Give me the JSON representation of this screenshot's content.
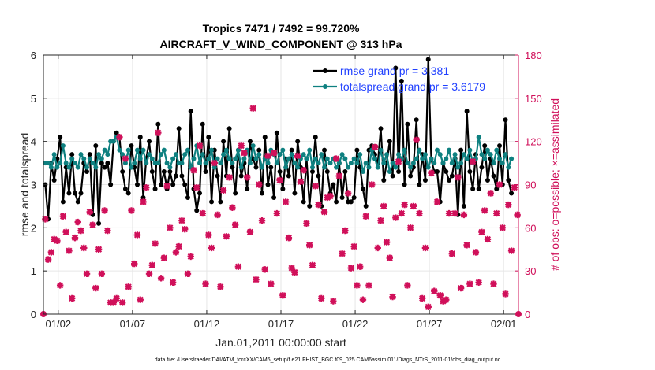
{
  "chart_data": {
    "type": "line",
    "title": "Tropics 7471 / 7492 = 99.720%",
    "subtitle": "AIRCRAFT_V_WIND_COMPONENT @ 313 hPa",
    "xlabel": "Jan.01,2011 00:00:00 start",
    "ylabel": "rmse and totalspread",
    "ylabel_right": "# of obs: o=possible; ×=assimilated",
    "footer": "data file: /Users/raeder/DAI/ATM_forcXX/CAM6_setup/f.e21.FHIST_BGC.f09_025.CAM6assim.011/Diags_NTrS_2011-01/obs_diag_output.nc",
    "xlim": [
      0.5,
      32.5
    ],
    "ylim": [
      0,
      6
    ],
    "ylim_right": [
      0,
      180
    ],
    "x_ticks": [
      1.5,
      6.5,
      11.5,
      16.5,
      21.5,
      26.5,
      31.5
    ],
    "x_tick_labels": [
      "01/02",
      "01/07",
      "01/12",
      "01/17",
      "01/22",
      "01/27",
      "02/01"
    ],
    "y_ticks": [
      0,
      1,
      2,
      3,
      4,
      5,
      6
    ],
    "y_ticks_right": [
      0,
      30,
      60,
      90,
      120,
      150,
      180
    ],
    "grid": true,
    "legend_location": "top-right",
    "colors": {
      "rmse": "#000000",
      "spread": "#0e8080",
      "obs": "#d0105a",
      "right_axis": "#d0105a"
    },
    "series": [
      {
        "name": "rmse grand pr = 3.381",
        "axis": "left",
        "color": "#000000",
        "marker": "dot",
        "values": [
          3.0,
          2.2,
          3.5,
          3.1,
          3.6,
          4.1,
          2.6,
          3.4,
          2.8,
          3.7,
          2.8,
          2.6,
          2.8,
          3.5,
          3.3,
          3.7,
          2.3,
          3.9,
          2.1,
          3.5,
          3.4,
          3.5,
          3.0,
          4.0,
          4.2,
          4.1,
          3.3,
          2.9,
          2.8,
          3.9,
          3.4,
          3.0,
          4.1,
          2.7,
          3.6,
          4.0,
          3.3,
          2.9,
          4.4,
          3.0,
          3.3,
          2.9,
          3.3,
          3.0,
          3.2,
          4.3,
          3.2,
          3.0,
          2.7,
          4.7,
          2.9,
          2.4,
          2.8,
          4.4,
          3.3,
          4.1,
          2.6,
          3.8,
          3.2,
          2.6,
          4.0,
          3.2,
          4.3,
          3.4,
          2.8,
          3.8,
          3.2,
          3.5,
          2.9,
          4.0,
          3.6,
          3.4,
          3.8,
          2.8,
          4.1,
          3.0,
          3.4,
          2.7,
          4.2,
          3.3,
          2.9,
          3.6,
          3.2,
          3.8,
          2.8,
          4.0,
          3.4,
          2.6,
          3.6,
          2.5,
          3.3,
          4.1,
          3.2,
          2.5,
          3.8,
          3.3,
          2.8,
          3.0,
          2.6,
          3.5,
          2.7,
          3.3,
          2.6,
          2.6,
          2.7,
          3.8,
          3.4,
          2.9,
          2.5,
          3.8,
          3.9,
          3.7,
          3.5,
          4.3,
          3.1,
          3.5,
          4.0,
          3.2,
          5.7,
          3.3,
          5.4,
          3.0,
          4.4,
          3.2,
          3.4,
          4.5,
          3.0,
          3.7,
          3.1,
          5.9,
          3.6,
          3.3,
          3.3,
          2.6,
          3.5,
          3.3,
          3.1,
          3.2,
          3.6,
          2.3,
          3.8,
          2.5,
          4.7,
          3.3,
          2.9,
          3.7,
          2.9,
          3.4,
          3.9,
          3.1,
          3.6,
          3.2,
          2.9,
          3.9,
          3.0,
          4.5,
          3.1,
          2.8
        ]
      },
      {
        "name": "totalspread grand pr = 3.6179",
        "axis": "left",
        "color": "#0e8080",
        "marker": "dot",
        "values": [
          3.5,
          3.5,
          3.4,
          3.7,
          3.4,
          3.5,
          3.9,
          3.5,
          3.4,
          3.6,
          3.5,
          3.4,
          3.7,
          3.6,
          3.4,
          3.6,
          3.5,
          3.4,
          3.7,
          3.6,
          3.8,
          3.7,
          4.0,
          4.0,
          4.1,
          3.8,
          3.7,
          3.5,
          3.8,
          3.4,
          3.5,
          3.8,
          3.6,
          3.8,
          3.5,
          3.7,
          3.6,
          3.5,
          3.5,
          3.7,
          3.8,
          3.5,
          3.4,
          3.6,
          3.7,
          3.5,
          3.5,
          3.7,
          3.8,
          3.4,
          3.6,
          3.9,
          3.5,
          3.7,
          3.5,
          3.6,
          3.8,
          3.4,
          3.6,
          3.5,
          3.7,
          3.8,
          3.6,
          3.5,
          3.6,
          3.8,
          3.4,
          3.6,
          3.8,
          3.5,
          3.9,
          3.6,
          3.7,
          3.4,
          3.6,
          3.5,
          3.8,
          3.7,
          3.5,
          3.7,
          3.8,
          3.4,
          3.6,
          3.7,
          3.5,
          3.4,
          3.6,
          3.7,
          3.6,
          3.8,
          3.4,
          3.6,
          3.5,
          3.7,
          3.4,
          3.6,
          3.5,
          3.6,
          3.4,
          3.5,
          3.7,
          3.6,
          3.4,
          3.5,
          3.6,
          3.5,
          3.7,
          3.3,
          3.5,
          3.4,
          3.8,
          3.6,
          3.4,
          3.8,
          3.5,
          3.7,
          3.3,
          3.5,
          3.4,
          3.7,
          3.6,
          3.8,
          3.5,
          3.4,
          3.5,
          3.6,
          3.8,
          3.6,
          3.7,
          3.4,
          3.6,
          3.5,
          3.8,
          3.7,
          3.5,
          3.6,
          3.8,
          3.5,
          3.7,
          3.4,
          3.5,
          3.7,
          3.6,
          3.8,
          3.5,
          3.6,
          4.1,
          3.7,
          3.6,
          3.8,
          3.7,
          3.5,
          3.8,
          3.6,
          3.5,
          3.7,
          3.4,
          3.6
        ]
      },
      {
        "name": "obs possible",
        "axis": "right",
        "color": "#d0105a",
        "marker": "circle",
        "values": [
          66,
          38,
          43,
          52,
          51,
          20,
          68,
          57,
          44,
          11,
          53,
          64,
          58,
          46,
          28,
          71,
          62,
          18,
          45,
          28,
          72,
          58,
          8,
          8,
          11,
          123,
          8,
          108,
          19,
          72,
          35,
          55,
          10,
          78,
          88,
          28,
          34,
          49,
          126,
          25,
          39,
          89,
          60,
          22,
          43,
          47,
          65,
          59,
          28,
          40,
          100,
          88,
          117,
          70,
          21,
          55,
          46,
          105,
          69,
          19,
          86,
          54,
          95,
          74,
          62,
          33,
          117,
          112,
          95,
          57,
          143,
          24,
          90,
          65,
          31,
          110,
          21,
          112,
          70,
          93,
          13,
          78,
          53,
          32,
          29,
          110,
          92,
          100,
          63,
          48,
          34,
          89,
          76,
          11,
          71,
          81,
          82,
          9,
          108,
          96,
          42,
          58,
          84,
          32,
          47,
          20,
          33,
          10,
          68,
          20,
          90,
          116,
          46,
          65,
          75,
          50,
          39,
          12,
          67,
          106,
          70,
          76,
          20,
          60,
          75,
          121,
          70,
          11,
          46,
          5,
          98,
          16,
          78,
          13,
          9,
          10,
          70,
          42,
          70,
          95,
          18,
          69,
          48,
          21,
          106,
          43,
          22,
          57,
          72,
          52,
          84,
          21,
          70,
          90,
          60,
          14,
          76,
          44,
          88,
          69
        ]
      },
      {
        "name": "obs assimilated",
        "axis": "right",
        "color": "#d0105a",
        "marker": "x",
        "values": [
          66,
          38,
          43,
          52,
          51,
          20,
          68,
          57,
          44,
          11,
          53,
          64,
          58,
          46,
          28,
          71,
          62,
          18,
          45,
          28,
          72,
          58,
          8,
          8,
          11,
          123,
          8,
          108,
          19,
          72,
          35,
          55,
          10,
          78,
          88,
          28,
          34,
          49,
          126,
          25,
          39,
          89,
          60,
          22,
          43,
          47,
          65,
          59,
          28,
          40,
          100,
          88,
          117,
          70,
          21,
          55,
          46,
          105,
          69,
          19,
          86,
          54,
          95,
          74,
          62,
          33,
          117,
          112,
          95,
          57,
          143,
          24,
          90,
          65,
          31,
          110,
          21,
          112,
          70,
          93,
          13,
          78,
          53,
          32,
          29,
          110,
          92,
          100,
          63,
          48,
          34,
          89,
          76,
          11,
          71,
          81,
          82,
          9,
          108,
          96,
          42,
          58,
          84,
          32,
          47,
          20,
          33,
          10,
          68,
          20,
          90,
          116,
          46,
          65,
          75,
          50,
          39,
          12,
          67,
          106,
          70,
          76,
          20,
          60,
          75,
          121,
          70,
          11,
          46,
          5,
          98,
          16,
          78,
          13,
          9,
          10,
          70,
          42,
          70,
          95,
          18,
          69,
          48,
          21,
          106,
          43,
          22,
          57,
          72,
          52,
          84,
          21,
          70,
          90,
          60,
          14,
          76,
          44,
          88,
          69
        ]
      }
    ],
    "extra_points": [
      {
        "series": "obs possible",
        "x": 0.5,
        "y": 0
      },
      {
        "series": "obs possible",
        "x": 32.5,
        "y": 0
      }
    ]
  }
}
